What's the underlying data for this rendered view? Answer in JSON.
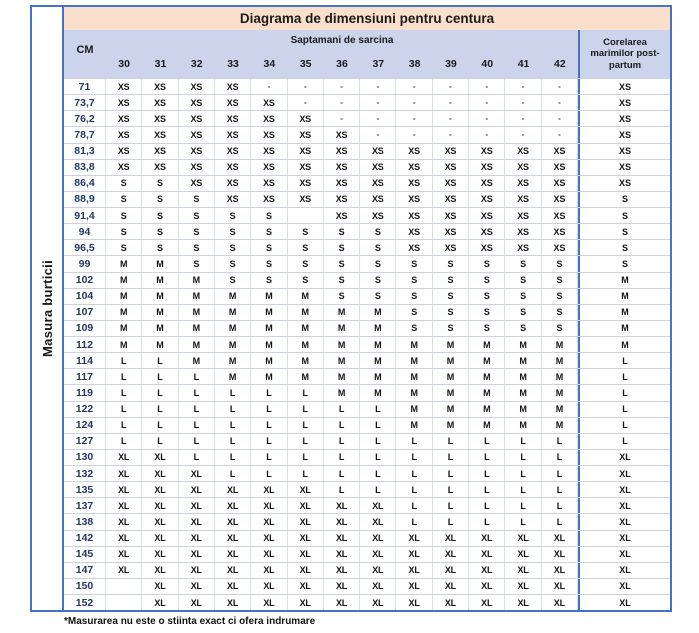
{
  "title": "Diagrama de dimensiuni pentru centura",
  "left_axis_label": "Masura burticii",
  "header": {
    "cm_label": "CM",
    "weeks_group_label": "Saptamani de sarcina",
    "weeks": [
      "30",
      "31",
      "32",
      "33",
      "34",
      "35",
      "36",
      "37",
      "38",
      "39",
      "40",
      "41",
      "42"
    ],
    "postpartum_label": "Corelarea marimilor post-partum"
  },
  "footnote": "*Masurarea nu este o stiinta exact ci ofera indrumare",
  "colors": {
    "border_blue": "#4472C4",
    "title_bg": "#FBDFCD",
    "header_bg": "#CBD4EB",
    "cm_text": "#1F3864",
    "grid_line": "#CBD3E3"
  },
  "chart_data": {
    "type": "table",
    "title": "Diagrama de dimensiuni pentru centura",
    "row_axis_label": "Masura burticii",
    "column_group_label": "Saptamani de sarcina",
    "columns": [
      "CM",
      "30",
      "31",
      "32",
      "33",
      "34",
      "35",
      "36",
      "37",
      "38",
      "39",
      "40",
      "41",
      "42",
      "Corelarea marimilor post-partum"
    ],
    "empty_marker": "-",
    "rows": [
      {
        "cm": "71",
        "sizes": [
          "XS",
          "XS",
          "XS",
          "XS",
          "-",
          "-",
          "-",
          "-",
          "-",
          "-",
          "-",
          "-",
          "-"
        ],
        "pp": "XS"
      },
      {
        "cm": "73,7",
        "sizes": [
          "XS",
          "XS",
          "XS",
          "XS",
          "XS",
          "-",
          "-",
          "-",
          "-",
          "-",
          "-",
          "-",
          "-"
        ],
        "pp": "XS"
      },
      {
        "cm": "76,2",
        "sizes": [
          "XS",
          "XS",
          "XS",
          "XS",
          "XS",
          "XS",
          "-",
          "-",
          "-",
          "-",
          "-",
          "-",
          "-"
        ],
        "pp": "XS"
      },
      {
        "cm": "78,7",
        "sizes": [
          "XS",
          "XS",
          "XS",
          "XS",
          "XS",
          "XS",
          "XS",
          "-",
          "-",
          "-",
          "-",
          "-",
          "-"
        ],
        "pp": "XS"
      },
      {
        "cm": "81,3",
        "sizes": [
          "XS",
          "XS",
          "XS",
          "XS",
          "XS",
          "XS",
          "XS",
          "XS",
          "XS",
          "XS",
          "XS",
          "XS",
          "XS"
        ],
        "pp": "XS"
      },
      {
        "cm": "83,8",
        "sizes": [
          "XS",
          "XS",
          "XS",
          "XS",
          "XS",
          "XS",
          "XS",
          "XS",
          "XS",
          "XS",
          "XS",
          "XS",
          "XS"
        ],
        "pp": "XS"
      },
      {
        "cm": "86,4",
        "sizes": [
          "S",
          "S",
          "XS",
          "XS",
          "XS",
          "XS",
          "XS",
          "XS",
          "XS",
          "XS",
          "XS",
          "XS",
          "XS"
        ],
        "pp": "XS"
      },
      {
        "cm": "88,9",
        "sizes": [
          "S",
          "S",
          "S",
          "XS",
          "XS",
          "XS",
          "XS",
          "XS",
          "XS",
          "XS",
          "XS",
          "XS",
          "XS"
        ],
        "pp": "S"
      },
      {
        "cm": "91,4",
        "sizes": [
          "S",
          "S",
          "S",
          "S",
          "S",
          "",
          "XS",
          "XS",
          "XS",
          "XS",
          "XS",
          "XS",
          "XS"
        ],
        "pp": "S"
      },
      {
        "cm": "94",
        "sizes": [
          "S",
          "S",
          "S",
          "S",
          "S",
          "S",
          "S",
          "S",
          "XS",
          "XS",
          "XS",
          "XS",
          "XS"
        ],
        "pp": "S"
      },
      {
        "cm": "96,5",
        "sizes": [
          "S",
          "S",
          "S",
          "S",
          "S",
          "S",
          "S",
          "S",
          "XS",
          "XS",
          "XS",
          "XS",
          "XS"
        ],
        "pp": "S"
      },
      {
        "cm": "99",
        "sizes": [
          "M",
          "M",
          "S",
          "S",
          "S",
          "S",
          "S",
          "S",
          "S",
          "S",
          "S",
          "S",
          "S"
        ],
        "pp": "S"
      },
      {
        "cm": "102",
        "sizes": [
          "M",
          "M",
          "M",
          "S",
          "S",
          "S",
          "S",
          "S",
          "S",
          "S",
          "S",
          "S",
          "S"
        ],
        "pp": "M"
      },
      {
        "cm": "104",
        "sizes": [
          "M",
          "M",
          "M",
          "M",
          "M",
          "M",
          "S",
          "S",
          "S",
          "S",
          "S",
          "S",
          "S"
        ],
        "pp": "M"
      },
      {
        "cm": "107",
        "sizes": [
          "M",
          "M",
          "M",
          "M",
          "M",
          "M",
          "M",
          "M",
          "S",
          "S",
          "S",
          "S",
          "S"
        ],
        "pp": "M"
      },
      {
        "cm": "109",
        "sizes": [
          "M",
          "M",
          "M",
          "M",
          "M",
          "M",
          "M",
          "M",
          "S",
          "S",
          "S",
          "S",
          "S"
        ],
        "pp": "M"
      },
      {
        "cm": "112",
        "sizes": [
          "M",
          "M",
          "M",
          "M",
          "M",
          "M",
          "M",
          "M",
          "M",
          "M",
          "M",
          "M",
          "M"
        ],
        "pp": "M"
      },
      {
        "cm": "114",
        "sizes": [
          "L",
          "L",
          "M",
          "M",
          "M",
          "M",
          "M",
          "M",
          "M",
          "M",
          "M",
          "M",
          "M"
        ],
        "pp": "L"
      },
      {
        "cm": "117",
        "sizes": [
          "L",
          "L",
          "L",
          "M",
          "M",
          "M",
          "M",
          "M",
          "M",
          "M",
          "M",
          "M",
          "M"
        ],
        "pp": "L"
      },
      {
        "cm": "119",
        "sizes": [
          "L",
          "L",
          "L",
          "L",
          "L",
          "L",
          "M",
          "M",
          "M",
          "M",
          "M",
          "M",
          "M"
        ],
        "pp": "L"
      },
      {
        "cm": "122",
        "sizes": [
          "L",
          "L",
          "L",
          "L",
          "L",
          "L",
          "L",
          "L",
          "M",
          "M",
          "M",
          "M",
          "M"
        ],
        "pp": "L"
      },
      {
        "cm": "124",
        "sizes": [
          "L",
          "L",
          "L",
          "L",
          "L",
          "L",
          "L",
          "L",
          "M",
          "M",
          "M",
          "M",
          "M"
        ],
        "pp": "L"
      },
      {
        "cm": "127",
        "sizes": [
          "L",
          "L",
          "L",
          "L",
          "L",
          "L",
          "L",
          "L",
          "L",
          "L",
          "L",
          "L",
          "L"
        ],
        "pp": "L"
      },
      {
        "cm": "130",
        "sizes": [
          "XL",
          "XL",
          "L",
          "L",
          "L",
          "L",
          "L",
          "L",
          "L",
          "L",
          "L",
          "L",
          "L"
        ],
        "pp": "XL"
      },
      {
        "cm": "132",
        "sizes": [
          "XL",
          "XL",
          "XL",
          "L",
          "L",
          "L",
          "L",
          "L",
          "L",
          "L",
          "L",
          "L",
          "L"
        ],
        "pp": "XL"
      },
      {
        "cm": "135",
        "sizes": [
          "XL",
          "XL",
          "XL",
          "XL",
          "XL",
          "XL",
          "L",
          "L",
          "L",
          "L",
          "L",
          "L",
          "L"
        ],
        "pp": "XL"
      },
      {
        "cm": "137",
        "sizes": [
          "XL",
          "XL",
          "XL",
          "XL",
          "XL",
          "XL",
          "XL",
          "XL",
          "L",
          "L",
          "L",
          "L",
          "L"
        ],
        "pp": "XL"
      },
      {
        "cm": "138",
        "sizes": [
          "XL",
          "XL",
          "XL",
          "XL",
          "XL",
          "XL",
          "XL",
          "XL",
          "L",
          "L",
          "L",
          "L",
          "L"
        ],
        "pp": "XL"
      },
      {
        "cm": "142",
        "sizes": [
          "XL",
          "XL",
          "XL",
          "XL",
          "XL",
          "XL",
          "XL",
          "XL",
          "XL",
          "XL",
          "XL",
          "XL",
          "XL"
        ],
        "pp": "XL"
      },
      {
        "cm": "145",
        "sizes": [
          "XL",
          "XL",
          "XL",
          "XL",
          "XL",
          "XL",
          "XL",
          "XL",
          "XL",
          "XL",
          "XL",
          "XL",
          "XL"
        ],
        "pp": "XL"
      },
      {
        "cm": "147",
        "sizes": [
          "XL",
          "XL",
          "XL",
          "XL",
          "XL",
          "XL",
          "XL",
          "XL",
          "XL",
          "XL",
          "XL",
          "XL",
          "XL"
        ],
        "pp": "XL"
      },
      {
        "cm": "150",
        "sizes": [
          "",
          "XL",
          "XL",
          "XL",
          "XL",
          "XL",
          "XL",
          "XL",
          "XL",
          "XL",
          "XL",
          "XL",
          "XL"
        ],
        "pp": "XL"
      },
      {
        "cm": "152",
        "sizes": [
          "",
          "XL",
          "XL",
          "XL",
          "XL",
          "XL",
          "XL",
          "XL",
          "XL",
          "XL",
          "XL",
          "XL",
          "XL"
        ],
        "pp": "XL"
      }
    ]
  }
}
